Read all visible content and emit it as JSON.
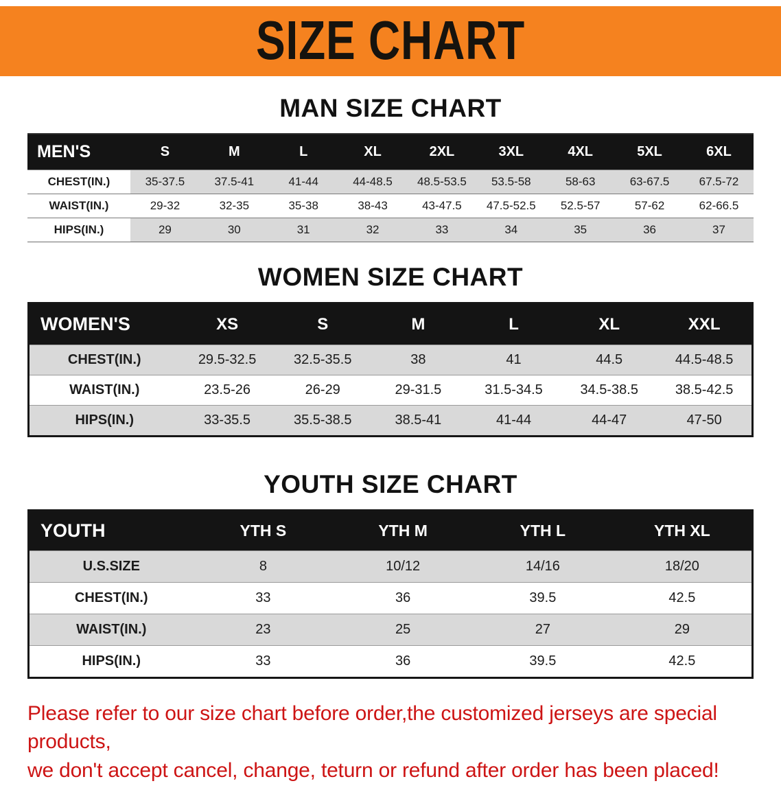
{
  "banner": {
    "title": "SIZE CHART",
    "bg_color": "#F5821F"
  },
  "sections": [
    {
      "heading": "MAN SIZE CHART",
      "header": [
        "MEN'S",
        "S",
        "M",
        "L",
        "XL",
        "2XL",
        "3XL",
        "4XL",
        "5XL",
        "6XL"
      ],
      "rows": [
        {
          "label": "CHEST(IN.)",
          "values": [
            "35-37.5",
            "37.5-41",
            "41-44",
            "44-48.5",
            "48.5-53.5",
            "53.5-58",
            "58-63",
            "63-67.5",
            "67.5-72"
          ]
        },
        {
          "label": "WAIST(IN.)",
          "values": [
            "29-32",
            "32-35",
            "35-38",
            "38-43",
            "43-47.5",
            "47.5-52.5",
            "52.5-57",
            "57-62",
            "62-66.5"
          ]
        },
        {
          "label": "HIPS(IN.)",
          "values": [
            "29",
            "30",
            "31",
            "32",
            "33",
            "34",
            "35",
            "36",
            "37"
          ]
        }
      ]
    },
    {
      "heading": "WOMEN SIZE CHART",
      "header": [
        "WOMEN'S",
        "XS",
        "S",
        "M",
        "L",
        "XL",
        "XXL"
      ],
      "rows": [
        {
          "label": "CHEST(IN.)",
          "values": [
            "29.5-32.5",
            "32.5-35.5",
            "38",
            "41",
            "44.5",
            "44.5-48.5"
          ]
        },
        {
          "label": "WAIST(IN.)",
          "values": [
            "23.5-26",
            "26-29",
            "29-31.5",
            "31.5-34.5",
            "34.5-38.5",
            "38.5-42.5"
          ]
        },
        {
          "label": "HIPS(IN.)",
          "values": [
            "33-35.5",
            "35.5-38.5",
            "38.5-41",
            "41-44",
            "44-47",
            "47-50"
          ]
        }
      ]
    },
    {
      "heading": "YOUTH SIZE CHART",
      "header": [
        "YOUTH",
        "YTH S",
        "YTH M",
        "YTH L",
        "YTH XL"
      ],
      "rows": [
        {
          "label": "U.S.SIZE",
          "values": [
            "8",
            "10/12",
            "14/16",
            "18/20"
          ]
        },
        {
          "label": "CHEST(IN.)",
          "values": [
            "33",
            "36",
            "39.5",
            "42.5"
          ]
        },
        {
          "label": "WAIST(IN.)",
          "values": [
            "23",
            "25",
            "27",
            "29"
          ]
        },
        {
          "label": "HIPS(IN.)",
          "values": [
            "33",
            "36",
            "39.5",
            "42.5"
          ]
        }
      ]
    }
  ],
  "footer": {
    "color": "#CD1414",
    "lines": [
      "Please refer to our size chart before order,the customized jerseys are special products,",
      "we don't accept cancel, change, teturn or refund after order has been placed!"
    ]
  }
}
